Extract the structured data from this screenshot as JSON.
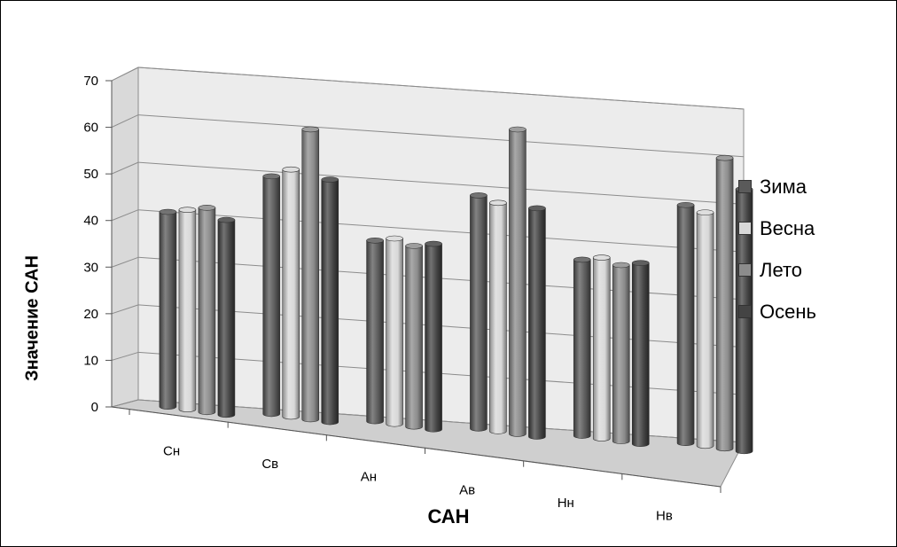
{
  "chart_data": {
    "type": "bar",
    "categories": [
      "Сн",
      "Св",
      "Ан",
      "Ав",
      "Нн",
      "Нв"
    ],
    "series": [
      {
        "name": "Зима",
        "color": "#5a5a5a",
        "values": [
          41,
          50,
          38,
          49,
          37,
          50
        ]
      },
      {
        "name": "Весна",
        "color": "#d8d8d8",
        "values": [
          42,
          52,
          39,
          48,
          38,
          49
        ]
      },
      {
        "name": "Лето",
        "color": "#8c8c8c",
        "values": [
          43,
          61,
          38,
          64,
          37,
          61
        ]
      },
      {
        "name": "Осень",
        "color": "#444444",
        "values": [
          41,
          51,
          39,
          48,
          38,
          55
        ]
      }
    ],
    "xlabel": "САН",
    "ylabel": "Значение САН",
    "ylim": [
      0,
      70
    ],
    "yticks": [
      "0",
      "10",
      "20",
      "30",
      "40",
      "50",
      "60",
      "70"
    ],
    "grid": true,
    "legend": "right",
    "style": "3d-cylinder"
  }
}
